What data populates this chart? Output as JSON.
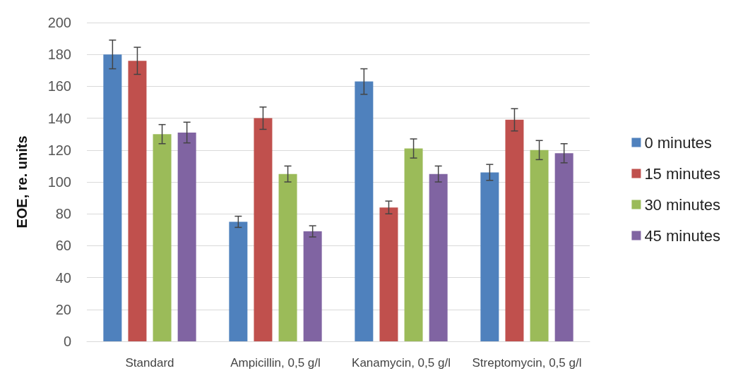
{
  "chart_data": {
    "type": "bar",
    "ylabel": "EOE, re. units",
    "categories": [
      "Standard",
      "Ampicillin, 0,5 g/l",
      "Kanamycin, 0,5 g/l",
      "Streptomycin, 0,5 g/l"
    ],
    "series": [
      {
        "name": "0 minutes",
        "color": "#4f81bd",
        "values": [
          180,
          75,
          163,
          106
        ],
        "errors": [
          9,
          3.5,
          8,
          5
        ]
      },
      {
        "name": "15 minutes",
        "color": "#c0504d",
        "values": [
          176,
          140,
          84,
          139
        ],
        "errors": [
          8.5,
          7,
          4,
          7
        ]
      },
      {
        "name": "30 minutes",
        "color": "#9bbb59",
        "values": [
          130,
          105,
          121,
          120
        ],
        "errors": [
          6,
          5,
          6,
          6
        ]
      },
      {
        "name": "45 minutes",
        "color": "#8064a2",
        "values": [
          131,
          69,
          105,
          118
        ],
        "errors": [
          6.5,
          3.5,
          5,
          6
        ]
      }
    ],
    "ylim": [
      0,
      200
    ],
    "yticks": [
      0,
      20,
      40,
      60,
      80,
      100,
      120,
      140,
      160,
      180,
      200
    ],
    "grid": "y",
    "legend": "right"
  }
}
